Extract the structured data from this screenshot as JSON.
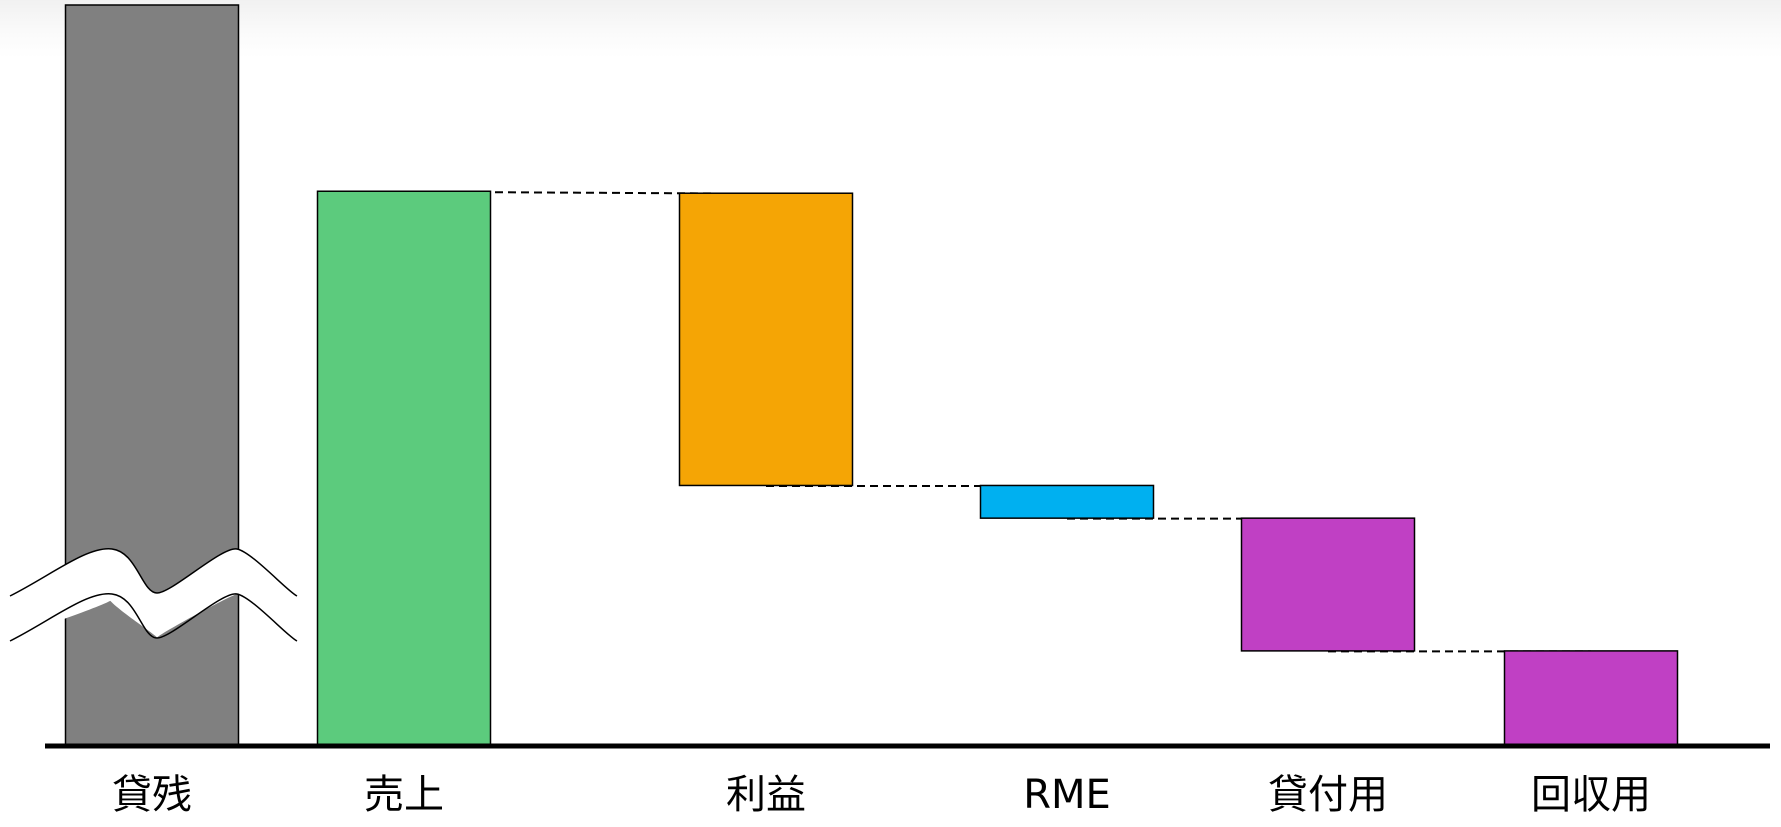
{
  "chart_data": {
    "type": "bar",
    "subtype": "waterfall",
    "categories": [
      "貸残",
      "売上",
      "利益",
      "RME",
      "貸付用",
      "回収用"
    ],
    "bars": [
      {
        "category": "貸残",
        "bottom": 0,
        "top": 748,
        "axis_break": true,
        "color": "#808080"
      },
      {
        "category": "売上",
        "bottom": 0,
        "top": 560,
        "color": "#5ccb7d"
      },
      {
        "category": "利益",
        "bottom": 263,
        "top": 558,
        "color": "#f5a505"
      },
      {
        "category": "RME",
        "bottom": 230,
        "top": 263,
        "color": "#00b0f0"
      },
      {
        "category": "貸付用",
        "bottom": 96,
        "top": 230,
        "color": "#c040c4"
      },
      {
        "category": "回収用",
        "bottom": 0,
        "top": 96,
        "color": "#c040c4"
      }
    ],
    "connectors": "dashed",
    "ylim": [
      0,
      748
    ],
    "title": "",
    "xlabel": "",
    "ylabel": "",
    "grid": false,
    "legend": "none"
  }
}
